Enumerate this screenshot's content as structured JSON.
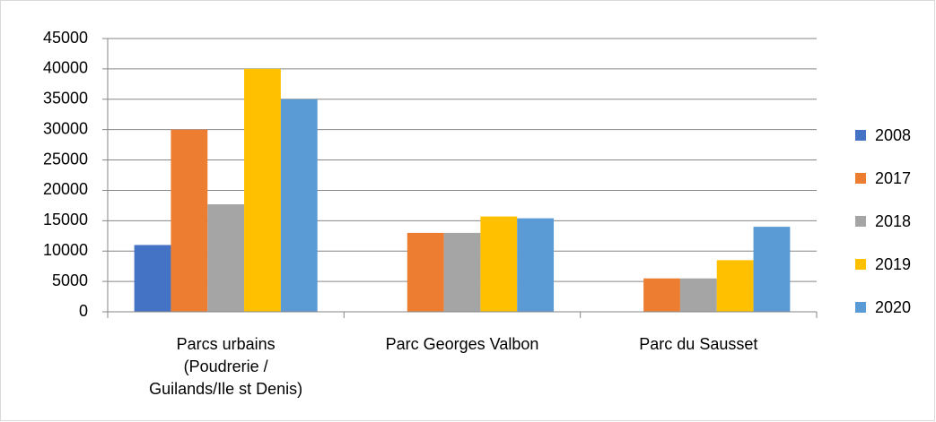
{
  "chart_data": {
    "type": "bar",
    "categories": [
      "Parcs urbains (Poudrerie / Guilands/Ile st Denis)",
      "Parc Georges Valbon",
      "Parc du Sausset"
    ],
    "series": [
      {
        "name": "2008",
        "color": "#4472C4",
        "values": [
          11000,
          null,
          null
        ]
      },
      {
        "name": "2017",
        "color": "#ED7D31",
        "values": [
          30000,
          13000,
          5500
        ]
      },
      {
        "name": "2018",
        "color": "#A5A5A5",
        "values": [
          17700,
          13000,
          5500
        ]
      },
      {
        "name": "2019",
        "color": "#FFC000",
        "values": [
          40000,
          15700,
          8500
        ]
      },
      {
        "name": "2020",
        "color": "#5B9BD5",
        "values": [
          35000,
          15400,
          14000
        ]
      }
    ],
    "ylim": [
      0,
      45000
    ],
    "yticks": [
      0,
      5000,
      10000,
      15000,
      20000,
      25000,
      30000,
      35000,
      40000,
      45000
    ],
    "grid": true,
    "legend": "right"
  }
}
